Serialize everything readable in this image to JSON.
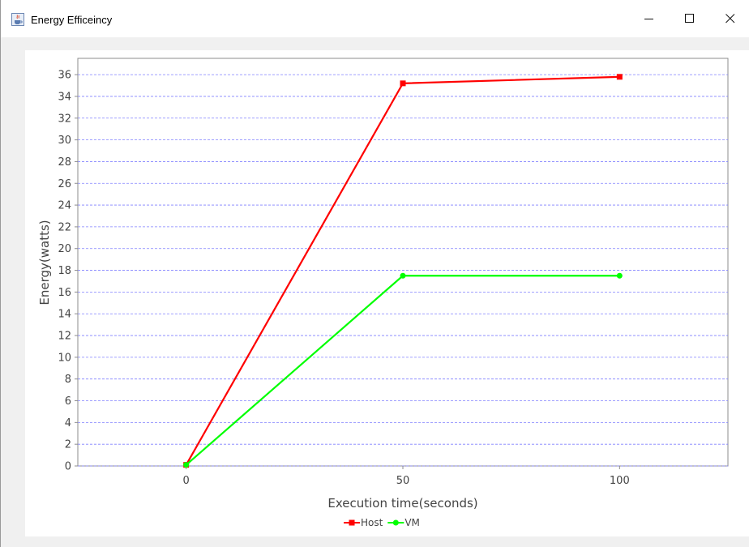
{
  "window": {
    "title": "Energy Efficeincy",
    "icon": "java-cup-icon",
    "controls": [
      "minimize-icon",
      "maximize-icon",
      "close-icon"
    ]
  },
  "chart_data": {
    "type": "line",
    "xlabel": "Execution time(seconds)",
    "ylabel": "Energy(watts)",
    "x_ticks": [
      "0",
      "50",
      "100"
    ],
    "y_ticks": [
      "0",
      "2",
      "4",
      "6",
      "8",
      "10",
      "12",
      "14",
      "16",
      "18",
      "20",
      "22",
      "24",
      "26",
      "28",
      "30",
      "32",
      "34",
      "36"
    ],
    "xlim": [
      -25,
      125
    ],
    "ylim": [
      0,
      37.5
    ],
    "grid": true,
    "legend_position": "bottom",
    "series": [
      {
        "name": "Host",
        "color": "#ff0000",
        "marker": "square",
        "x": [
          0,
          50,
          100
        ],
        "y": [
          0.1,
          35.2,
          35.8
        ]
      },
      {
        "name": "VM",
        "color": "#00ff00",
        "marker": "circle",
        "x": [
          0,
          50,
          100
        ],
        "y": [
          0.1,
          17.5,
          17.5
        ]
      }
    ]
  }
}
